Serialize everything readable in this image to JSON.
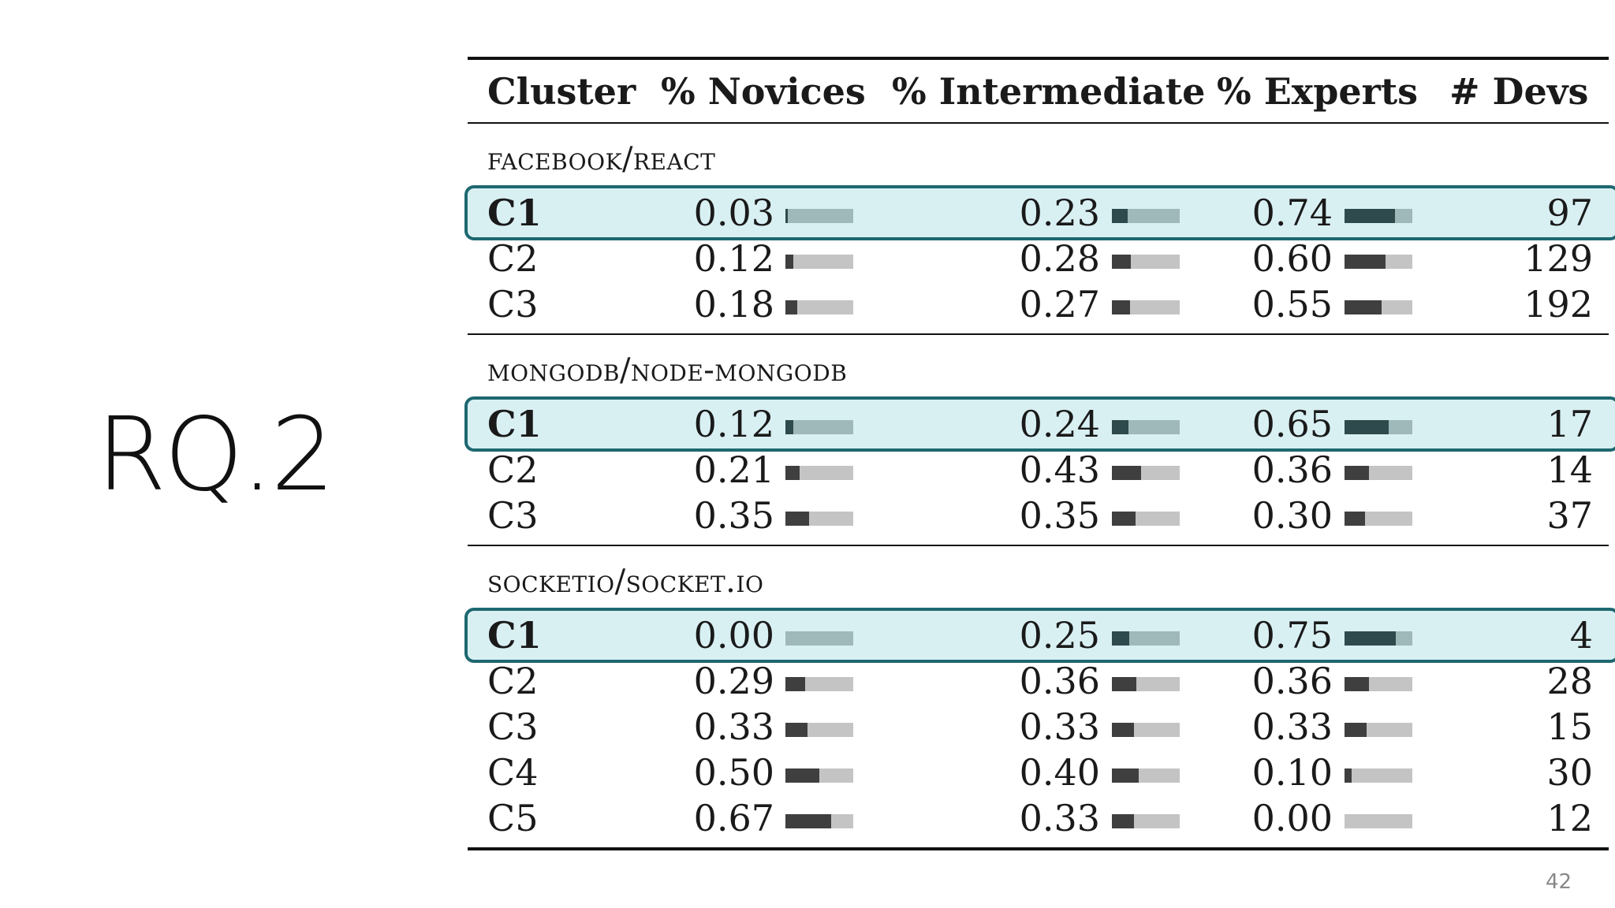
{
  "slide": {
    "title": "RQ.2",
    "page_number": "42"
  },
  "table": {
    "headers": {
      "cluster": "Cluster",
      "novices": "% Novices",
      "intermediate": "% Intermediate",
      "experts": "% Experts",
      "devs": "# Devs"
    },
    "groups": [
      {
        "label": "facebook/react",
        "rows": [
          {
            "cluster": "C1",
            "novices": "0.03",
            "intermediate": "0.23",
            "experts": "0.74",
            "devs": "97",
            "highlighted": true
          },
          {
            "cluster": "C2",
            "novices": "0.12",
            "intermediate": "0.28",
            "experts": "0.60",
            "devs": "129",
            "highlighted": false
          },
          {
            "cluster": "C3",
            "novices": "0.18",
            "intermediate": "0.27",
            "experts": "0.55",
            "devs": "192",
            "highlighted": false
          }
        ]
      },
      {
        "label": "mongodb/node-mongodb",
        "rows": [
          {
            "cluster": "C1",
            "novices": "0.12",
            "intermediate": "0.24",
            "experts": "0.65",
            "devs": "17",
            "highlighted": true
          },
          {
            "cluster": "C2",
            "novices": "0.21",
            "intermediate": "0.43",
            "experts": "0.36",
            "devs": "14",
            "highlighted": false
          },
          {
            "cluster": "C3",
            "novices": "0.35",
            "intermediate": "0.35",
            "experts": "0.30",
            "devs": "37",
            "highlighted": false
          }
        ]
      },
      {
        "label": "socketio/socket.io",
        "rows": [
          {
            "cluster": "C1",
            "novices": "0.00",
            "intermediate": "0.25",
            "experts": "0.75",
            "devs": "4",
            "highlighted": true
          },
          {
            "cluster": "C2",
            "novices": "0.29",
            "intermediate": "0.36",
            "experts": "0.36",
            "devs": "28",
            "highlighted": false
          },
          {
            "cluster": "C3",
            "novices": "0.33",
            "intermediate": "0.33",
            "experts": "0.33",
            "devs": "15",
            "highlighted": false
          },
          {
            "cluster": "C4",
            "novices": "0.50",
            "intermediate": "0.40",
            "experts": "0.10",
            "devs": "30",
            "highlighted": false
          },
          {
            "cluster": "C5",
            "novices": "0.67",
            "intermediate": "0.33",
            "experts": "0.00",
            "devs": "12",
            "highlighted": false
          }
        ]
      }
    ]
  }
}
